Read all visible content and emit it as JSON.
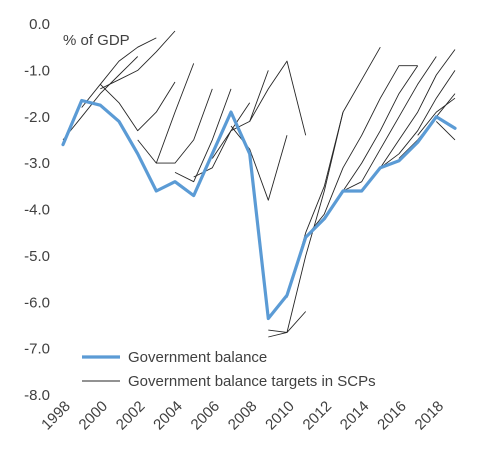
{
  "chart_data": {
    "type": "line",
    "title": "",
    "xlabel": "",
    "ylabel": "% of GDP",
    "xlim": [
      1998,
      2019
    ],
    "ylim": [
      -8.0,
      0.0
    ],
    "x_ticks": [
      "1998",
      "2000",
      "2002",
      "2004",
      "2006",
      "2008",
      "2010",
      "2012",
      "2014",
      "2016",
      "2018"
    ],
    "y_ticks": [
      "0.0",
      "-1.0",
      "-2.0",
      "-3.0",
      "-4.0",
      "-5.0",
      "-6.0",
      "-7.0",
      "-8.0"
    ],
    "grid": false,
    "legend_position": "bottom-left",
    "series": [
      {
        "name": "Government balance",
        "color": "#5B9BD5",
        "x": [
          1998,
          1999,
          2000,
          2001,
          2002,
          2003,
          2004,
          2005,
          2006,
          2007,
          2008,
          2009,
          2010,
          2011,
          2012,
          2013,
          2014,
          2015,
          2016,
          2017,
          2018,
          2019
        ],
        "values": [
          -2.6,
          -1.65,
          -1.75,
          -2.1,
          -2.8,
          -3.6,
          -3.4,
          -3.7,
          -2.8,
          -1.9,
          -2.8,
          -6.35,
          -5.85,
          -4.6,
          -4.2,
          -3.6,
          -3.6,
          -3.1,
          -2.95,
          -2.55,
          -2.0,
          -2.25
        ]
      },
      {
        "name": "Government balance targets in SCPs",
        "color": "#262626",
        "vintages": [
          {
            "x": [
              1998,
              1999,
              2000,
              2001,
              2002
            ],
            "values": [
              -2.5,
              -2.0,
              -1.5,
              -1.1,
              -0.7
            ]
          },
          {
            "x": [
              1999,
              2000,
              2001,
              2002,
              2003
            ],
            "values": [
              -1.8,
              -1.3,
              -0.8,
              -0.5,
              -0.3
            ]
          },
          {
            "x": [
              2000,
              2001,
              2002,
              2003,
              2004
            ],
            "values": [
              -1.4,
              -1.2,
              -1.0,
              -0.6,
              -0.15
            ]
          },
          {
            "x": [
              2000,
              2001,
              2002,
              2003,
              2004
            ],
            "values": [
              -1.3,
              -1.7,
              -2.3,
              -1.9,
              -1.25
            ]
          },
          {
            "x": [
              2002,
              2003,
              2004,
              2005
            ],
            "values": [
              -2.5,
              -3.0,
              -1.9,
              -0.85
            ]
          },
          {
            "x": [
              2003,
              2004,
              2005,
              2006
            ],
            "values": [
              -3.0,
              -3.0,
              -2.5,
              -1.4
            ]
          },
          {
            "x": [
              2004,
              2005,
              2006,
              2007
            ],
            "values": [
              -3.2,
              -3.4,
              -2.5,
              -1.4
            ]
          },
          {
            "x": [
              2005,
              2006,
              2007,
              2008
            ],
            "values": [
              -3.3,
              -3.1,
              -2.3,
              -1.7
            ]
          },
          {
            "x": [
              2006,
              2007,
              2008,
              2009
            ],
            "values": [
              -2.9,
              -2.3,
              -2.1,
              -1.0
            ]
          },
          {
            "x": [
              2007,
              2008,
              2009,
              2010
            ],
            "values": [
              -2.2,
              -2.7,
              -3.8,
              -2.4
            ]
          },
          {
            "x": [
              2008,
              2009,
              2010,
              2011
            ],
            "values": [
              -2.1,
              -1.4,
              -0.8,
              -2.4
            ]
          },
          {
            "x": [
              2009,
              2010,
              2011
            ],
            "values": [
              -6.75,
              -6.65,
              -6.2
            ]
          },
          {
            "x": [
              2009,
              2010,
              2011,
              2012,
              2013
            ],
            "values": [
              -6.6,
              -6.65,
              -5.0,
              -3.6,
              -1.9
            ]
          },
          {
            "x": [
              2010,
              2011,
              2012,
              2013,
              2014,
              2015
            ],
            "values": [
              -5.9,
              -4.5,
              -3.5,
              -1.9,
              -1.2,
              -0.5
            ]
          },
          {
            "x": [
              2011,
              2012,
              2013,
              2014,
              2015,
              2016,
              2017
            ],
            "values": [
              -4.6,
              -4.1,
              -3.1,
              -2.4,
              -1.6,
              -0.9,
              -0.9
            ]
          },
          {
            "x": [
              2012,
              2013,
              2014,
              2015,
              2016,
              2017
            ],
            "values": [
              -4.2,
              -3.6,
              -3.0,
              -2.3,
              -1.5,
              -0.9
            ]
          },
          {
            "x": [
              2013,
              2014,
              2015,
              2016,
              2017,
              2018
            ],
            "values": [
              -3.6,
              -3.4,
              -2.7,
              -2.0,
              -1.3,
              -0.7
            ]
          },
          {
            "x": [
              2014,
              2015,
              2016,
              2017,
              2018,
              2019
            ],
            "values": [
              -3.6,
              -3.1,
              -2.5,
              -1.9,
              -1.1,
              -0.55
            ]
          },
          {
            "x": [
              2015,
              2016,
              2017,
              2018,
              2019
            ],
            "values": [
              -3.1,
              -2.8,
              -2.3,
              -1.6,
              -1.0
            ]
          },
          {
            "x": [
              2016,
              2017,
              2018,
              2019
            ],
            "values": [
              -2.9,
              -2.5,
              -2.0,
              -1.5
            ]
          },
          {
            "x": [
              2017,
              2018,
              2019
            ],
            "values": [
              -2.4,
              -1.9,
              -1.6
            ]
          },
          {
            "x": [
              2018,
              2019
            ],
            "values": [
              -2.1,
              -2.5
            ]
          }
        ]
      }
    ]
  }
}
